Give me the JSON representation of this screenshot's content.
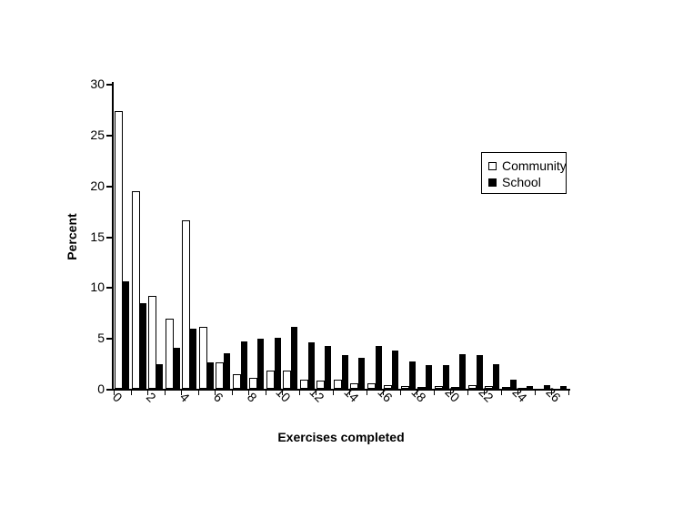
{
  "chart_data": {
    "type": "bar",
    "title": "",
    "xlabel": "Exercises completed",
    "ylabel": "Percent",
    "ylim": [
      0,
      30
    ],
    "yticks": [
      0,
      5,
      10,
      15,
      20,
      25,
      30
    ],
    "xtick_label_step": 2,
    "grid": "off",
    "legend_position": "upper-right-inside",
    "categories": [
      "0",
      "1",
      "2",
      "3",
      "4",
      "5",
      "6",
      "7",
      "8",
      "9",
      "10",
      "11",
      "12",
      "13",
      "14",
      "15",
      "16",
      "17",
      "18",
      "19",
      "20",
      "21",
      "22",
      "23",
      "24",
      "25",
      "26"
    ],
    "series": [
      {
        "name": "Community",
        "color": "#ffffff",
        "values": [
          27.3,
          19.4,
          9.1,
          6.9,
          16.6,
          6.1,
          2.6,
          1.4,
          1.1,
          1.8,
          1.8,
          0.9,
          0.8,
          0.9,
          0.5,
          0.5,
          0.4,
          0.3,
          0.2,
          0.3,
          0.2,
          0.4,
          0.3,
          0.2,
          0.1,
          0.0,
          0.0
        ]
      },
      {
        "name": "School",
        "color": "#000000",
        "values": [
          10.6,
          8.4,
          2.4,
          4.0,
          5.9,
          2.6,
          3.5,
          4.7,
          4.9,
          5.0,
          6.1,
          4.6,
          4.2,
          3.3,
          3.0,
          4.2,
          3.8,
          2.7,
          2.3,
          2.3,
          3.4,
          3.3,
          2.4,
          0.9,
          0.3,
          0.4,
          0.3
        ]
      }
    ]
  }
}
